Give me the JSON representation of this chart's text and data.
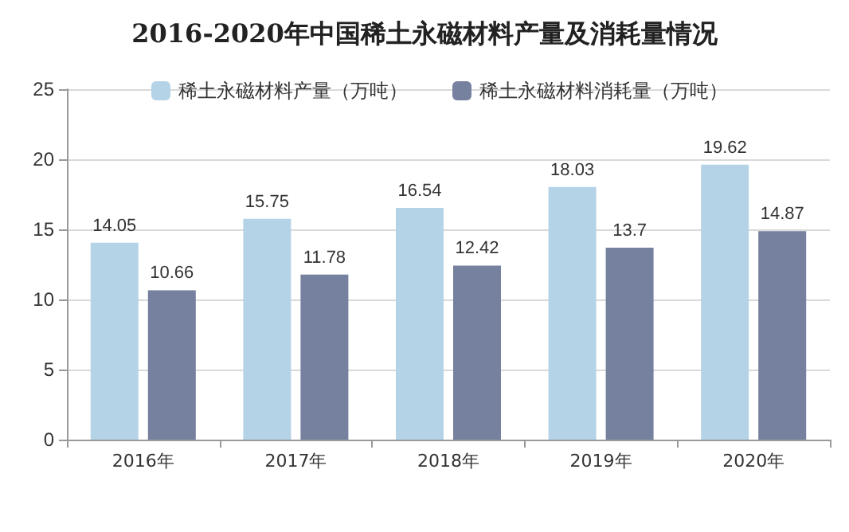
{
  "chart_data": {
    "type": "bar",
    "title": "2016-2020年中国稀土永磁材料产量及消耗量情况",
    "categories": [
      "2016年",
      "2017年",
      "2018年",
      "2019年",
      "2020年"
    ],
    "series": [
      {
        "name": "稀土永磁材料产量（万吨）",
        "color": "#b5d3e7",
        "values": [
          14.05,
          15.75,
          16.54,
          18.03,
          19.62
        ]
      },
      {
        "name": "稀土永磁材料消耗量（万吨）",
        "color": "#76809f",
        "values": [
          10.66,
          11.78,
          12.42,
          13.7,
          14.87
        ]
      }
    ],
    "ylim": [
      0,
      25
    ],
    "yticks": [
      0,
      5,
      10,
      15,
      20,
      25
    ],
    "grid": "y",
    "legend": "top",
    "data_labels": true
  }
}
